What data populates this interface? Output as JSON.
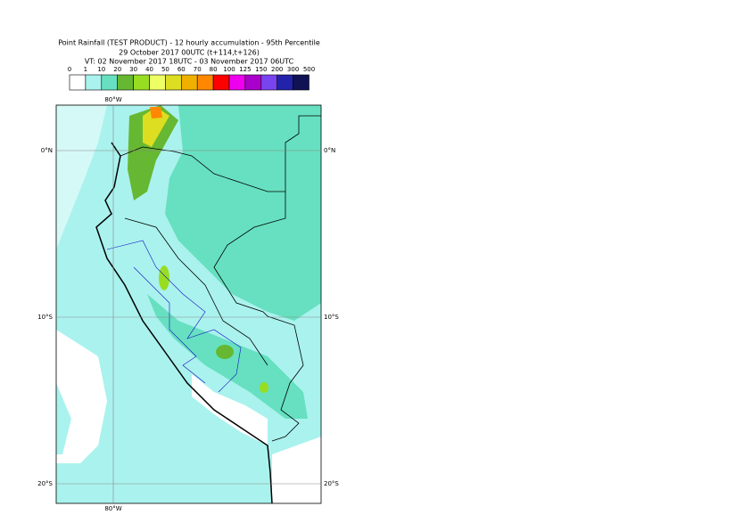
{
  "header": {
    "title": "Point Rainfall (TEST PRODUCT) - 12 hourly accumulation - 95th Percentile",
    "subtitle": "29 October 2017 00UTC (t+114,t+126)",
    "valid_time": "VT: 02 November 2017 18UTC - 03 November 2017 06UTC"
  },
  "legend": {
    "thresholds": [
      0,
      1,
      10,
      20,
      30,
      40,
      50,
      60,
      70,
      80,
      100,
      125,
      150,
      200,
      300,
      500
    ],
    "colors": [
      "#ffffff",
      "#aaf2ee",
      "#66e0c0",
      "#66b832",
      "#99dd22",
      "#eeff66",
      "#dddd22",
      "#f0b000",
      "#ff8800",
      "#ff0000",
      "#ee00ee",
      "#aa00cc",
      "#7744ee",
      "#2222aa",
      "#111155"
    ]
  },
  "map": {
    "lat_labels": [
      "0°N",
      "10°S",
      "20°S"
    ],
    "lon_labels": [
      "80°W"
    ]
  }
}
